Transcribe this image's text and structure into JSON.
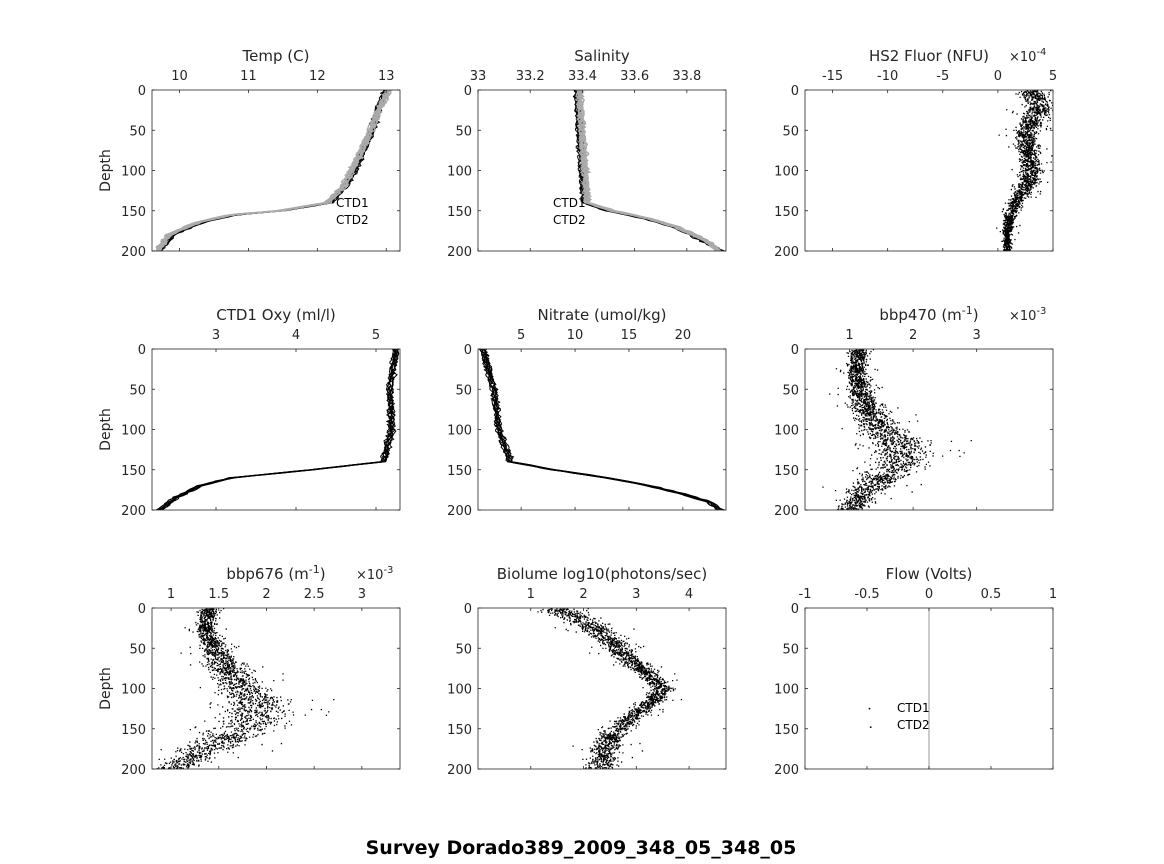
{
  "suptitle": "Survey Dorado389_2009_348_05_348_05",
  "colors": {
    "ctd1": "#000000",
    "ctd2": "#aaaaaa",
    "axis": "#262626",
    "flow_line": "#aaaaaa"
  },
  "chart_data": [
    {
      "type": "line",
      "title": "Temp (C)",
      "xlim": [
        9.6,
        13.2
      ],
      "xticks": [
        10,
        11,
        12,
        13
      ],
      "xtick_labels": [
        "10",
        "11",
        "12",
        "13"
      ],
      "ylim": [
        0,
        200
      ],
      "yticks": [
        0,
        50,
        100,
        150,
        200
      ],
      "ytick_labels": [
        "0",
        "50",
        "100",
        "150",
        "200"
      ],
      "ylabel": "Depth",
      "legend": [
        "CTD1",
        "CTD2"
      ],
      "series": [
        {
          "name": "CTD1",
          "depth": [
            0,
            20,
            50,
            80,
            100,
            120,
            140,
            150,
            155,
            165,
            180,
            200
          ],
          "values": [
            13.0,
            12.9,
            12.8,
            12.65,
            12.55,
            12.4,
            12.2,
            11.5,
            10.8,
            10.3,
            9.9,
            9.7
          ]
        },
        {
          "name": "CTD2",
          "depth": [
            0,
            20,
            50,
            80,
            100,
            120,
            140,
            150,
            155,
            165,
            180,
            200
          ],
          "values": [
            13.05,
            12.92,
            12.78,
            12.62,
            12.5,
            12.38,
            12.15,
            11.45,
            10.75,
            10.25,
            9.85,
            9.68
          ]
        }
      ]
    },
    {
      "type": "line",
      "title": "Salinity",
      "xlim": [
        33.0,
        33.95
      ],
      "xticks": [
        33.0,
        33.2,
        33.4,
        33.6,
        33.8
      ],
      "xtick_labels": [
        "33",
        "33.2",
        "33.4",
        "33.6",
        "33.8"
      ],
      "ylim": [
        0,
        200
      ],
      "yticks": [
        0,
        50,
        100,
        150,
        200
      ],
      "ytick_labels": [
        "0",
        "50",
        "100",
        "150",
        "200"
      ],
      "ylabel": "",
      "legend": [
        "CTD1",
        "CTD2"
      ],
      "series": [
        {
          "name": "CTD1",
          "depth": [
            0,
            50,
            100,
            140,
            150,
            160,
            170,
            180,
            190,
            200
          ],
          "values": [
            33.38,
            33.39,
            33.4,
            33.41,
            33.5,
            33.65,
            33.75,
            33.82,
            33.88,
            33.93
          ]
        },
        {
          "name": "CTD2",
          "depth": [
            0,
            50,
            100,
            140,
            150,
            160,
            170,
            180,
            190,
            200
          ],
          "values": [
            33.39,
            33.4,
            33.41,
            33.42,
            33.52,
            33.66,
            33.76,
            33.83,
            33.89,
            33.92
          ]
        }
      ]
    },
    {
      "type": "scatter",
      "title": "HS2 Fluor (NFU)",
      "exponent_label": "×10-4",
      "exponent_base": "×10",
      "exponent_power": "-4",
      "xlim": [
        -17.5,
        5
      ],
      "xticks": [
        -15,
        -10,
        -5,
        0,
        5
      ],
      "xtick_labels": [
        "-15",
        "-10",
        "-5",
        "0",
        "5"
      ],
      "ylim": [
        0,
        200
      ],
      "yticks": [
        0,
        50,
        100,
        150,
        200
      ],
      "ytick_labels": [
        "0",
        "50",
        "100",
        "150",
        "200"
      ],
      "ylabel": "",
      "profile": {
        "depth": [
          0,
          20,
          50,
          80,
          100,
          120,
          140,
          160,
          180,
          200
        ],
        "values": [
          3.0,
          3.8,
          2.5,
          2.8,
          3.0,
          2.5,
          1.5,
          1.0,
          0.8,
          0.8
        ],
        "spread": [
          1.2,
          1.4,
          1.1,
          0.8,
          1.0,
          0.9,
          0.7,
          0.5,
          0.4,
          0.4
        ]
      }
    },
    {
      "type": "line",
      "title": "CTD1 Oxy (ml/l)",
      "xlim": [
        2.2,
        5.3
      ],
      "xticks": [
        3,
        4,
        5
      ],
      "xtick_labels": [
        "3",
        "4",
        "5"
      ],
      "ylim": [
        0,
        200
      ],
      "yticks": [
        0,
        50,
        100,
        150,
        200
      ],
      "ytick_labels": [
        "0",
        "50",
        "100",
        "150",
        "200"
      ],
      "ylabel": "Depth",
      "series": [
        {
          "name": "CTD1",
          "depth": [
            0,
            50,
            100,
            140,
            150,
            160,
            170,
            185,
            200
          ],
          "values": [
            5.25,
            5.18,
            5.2,
            5.1,
            4.2,
            3.2,
            2.8,
            2.5,
            2.3
          ]
        }
      ]
    },
    {
      "type": "line",
      "title": "Nitrate (umol/kg)",
      "xlim": [
        1,
        24
      ],
      "xticks": [
        5,
        10,
        15,
        20
      ],
      "xtick_labels": [
        "5",
        "10",
        "15",
        "20"
      ],
      "ylim": [
        0,
        200
      ],
      "yticks": [
        0,
        50,
        100,
        150,
        200
      ],
      "ytick_labels": [
        "0",
        "50",
        "100",
        "150",
        "200"
      ],
      "ylabel": "",
      "series": [
        {
          "name": "Nitrate",
          "depth": [
            0,
            50,
            100,
            140,
            150,
            160,
            170,
            180,
            190,
            200
          ],
          "values": [
            1.5,
            2.5,
            3.0,
            4.0,
            8.0,
            13.0,
            17.0,
            20.0,
            22.5,
            23.5
          ]
        }
      ]
    },
    {
      "type": "scatter",
      "title": "bbp470 (m-1)",
      "title_base": "bbp470 (m",
      "title_power": "-1",
      "title_end": ")",
      "exponent_label": "×10-3",
      "exponent_base": "×10",
      "exponent_power": "-3",
      "xlim": [
        0.3,
        4.2
      ],
      "xticks": [
        1,
        2,
        3
      ],
      "xtick_labels": [
        "1",
        "2",
        "3"
      ],
      "ylim": [
        0,
        200
      ],
      "yticks": [
        0,
        50,
        100,
        150,
        200
      ],
      "ytick_labels": [
        "0",
        "50",
        "100",
        "150",
        "200"
      ],
      "ylabel": "",
      "profile": {
        "depth": [
          0,
          25,
          50,
          75,
          100,
          120,
          140,
          160,
          180,
          200
        ],
        "values": [
          1.15,
          1.1,
          1.15,
          1.3,
          1.5,
          1.8,
          1.8,
          1.5,
          1.2,
          1.0
        ],
        "spread": [
          0.15,
          0.15,
          0.2,
          0.25,
          0.35,
          0.5,
          0.45,
          0.35,
          0.3,
          0.25
        ]
      }
    },
    {
      "type": "scatter",
      "title": "bbp676 (m-1)",
      "title_base": "bbp676 (m",
      "title_power": "-1",
      "title_end": ")",
      "exponent_label": "×10-3",
      "exponent_base": "×10",
      "exponent_power": "-3",
      "xlim": [
        0.8,
        3.4
      ],
      "xticks": [
        1,
        1.5,
        2,
        2.5,
        3
      ],
      "xtick_labels": [
        "1",
        "1.5",
        "2",
        "2.5",
        "3"
      ],
      "ylim": [
        0,
        200
      ],
      "yticks": [
        0,
        50,
        100,
        150,
        200
      ],
      "ytick_labels": [
        "0",
        "50",
        "100",
        "150",
        "200"
      ],
      "ylabel": "Depth",
      "profile": {
        "depth": [
          0,
          25,
          50,
          75,
          100,
          120,
          140,
          160,
          180,
          200
        ],
        "values": [
          1.4,
          1.35,
          1.45,
          1.6,
          1.75,
          1.9,
          1.85,
          1.6,
          1.3,
          1.0
        ],
        "spread": [
          0.1,
          0.1,
          0.15,
          0.2,
          0.25,
          0.35,
          0.4,
          0.3,
          0.3,
          0.2
        ]
      }
    },
    {
      "type": "scatter",
      "title": "Biolume log10(photons/sec)",
      "xlim": [
        0,
        4.7
      ],
      "xticks": [
        1,
        2,
        3,
        4
      ],
      "xtick_labels": [
        "1",
        "2",
        "3",
        "4"
      ],
      "ylim": [
        0,
        200
      ],
      "yticks": [
        0,
        50,
        100,
        150,
        200
      ],
      "ytick_labels": [
        "0",
        "50",
        "100",
        "150",
        "200"
      ],
      "ylabel": "",
      "profile": {
        "depth": [
          0,
          20,
          40,
          60,
          80,
          100,
          120,
          140,
          160,
          180,
          200
        ],
        "values": [
          1.5,
          2.1,
          2.5,
          2.8,
          3.2,
          3.5,
          3.2,
          2.8,
          2.5,
          2.4,
          2.3
        ],
        "spread": [
          0.4,
          0.35,
          0.3,
          0.25,
          0.2,
          0.2,
          0.2,
          0.25,
          0.25,
          0.3,
          0.35
        ]
      }
    },
    {
      "type": "scatter",
      "title": "Flow (Volts)",
      "xlim": [
        -1,
        1
      ],
      "xticks": [
        -1,
        -0.5,
        0,
        0.5,
        1
      ],
      "xtick_labels": [
        "-1",
        "-0.5",
        "0",
        "0.5",
        "1"
      ],
      "ylim": [
        0,
        200
      ],
      "yticks": [
        0,
        50,
        100,
        150,
        200
      ],
      "ytick_labels": [
        "0",
        "50",
        "100",
        "150",
        "200"
      ],
      "ylabel": "",
      "legend": [
        "CTD1",
        "CTD2"
      ],
      "points": [
        {
          "x": -0.48,
          "y": 125
        },
        {
          "x": -0.47,
          "y": 148
        }
      ],
      "vline": 0
    }
  ]
}
